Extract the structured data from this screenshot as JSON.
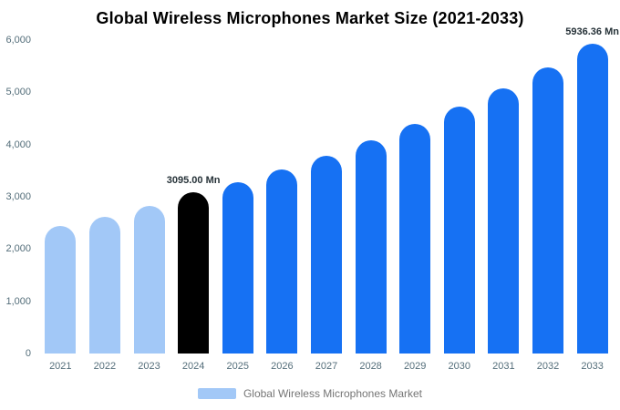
{
  "chart_data": {
    "type": "bar",
    "title": "Global Wireless Microphones Market Size (2021-2033)",
    "categories": [
      "2021",
      "2022",
      "2023",
      "2024",
      "2025",
      "2026",
      "2027",
      "2028",
      "2029",
      "2030",
      "2031",
      "2032",
      "2033"
    ],
    "values": [
      2450,
      2620,
      2830,
      3095,
      3280,
      3530,
      3790,
      4080,
      4390,
      4720,
      5080,
      5470,
      5936.36
    ],
    "unit": "Mn",
    "bar_colors": [
      "#a2c8f7",
      "#a2c8f7",
      "#a2c8f7",
      "#000000",
      "#1671f3",
      "#1671f3",
      "#1671f3",
      "#1671f3",
      "#1671f3",
      "#1671f3",
      "#1671f3",
      "#1671f3",
      "#1671f3"
    ],
    "ylim": [
      0,
      6000
    ],
    "y_ticks": [
      "0",
      "1,000",
      "2,000",
      "3,000",
      "4,000",
      "5,000",
      "6,000"
    ],
    "grid": false,
    "annotations": [
      {
        "index": 3,
        "text": "3095.00 Mn"
      },
      {
        "index": 12,
        "text": "5936.36 Mn"
      }
    ],
    "legend_position": "bottom",
    "legend": [
      {
        "label": "Global Wireless Microphones Market",
        "color": "#a2c8f7"
      }
    ]
  }
}
